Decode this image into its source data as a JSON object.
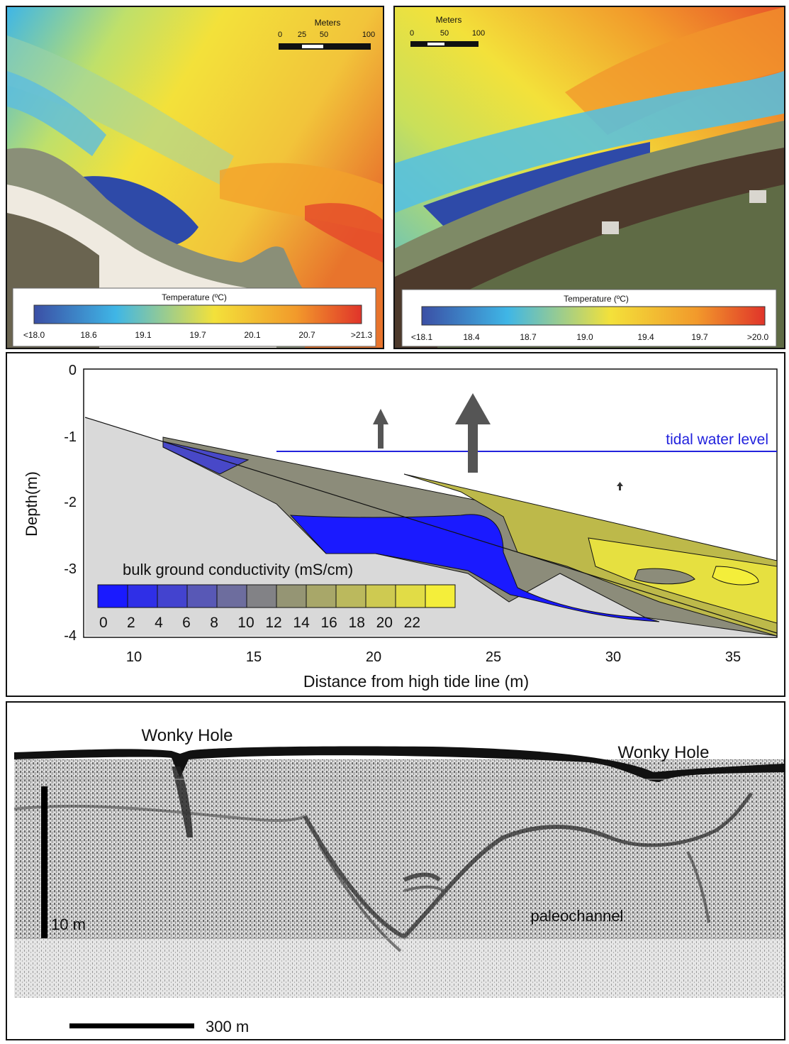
{
  "map_left": {
    "scale": {
      "title": "Meters",
      "ticks": [
        "0",
        "25",
        "50",
        "100"
      ]
    },
    "legend": {
      "title": "Temperature (ºC)",
      "ticks": [
        "<18.0",
        "18.6",
        "19.1",
        "19.7",
        "20.1",
        "20.7",
        ">21.3"
      ]
    }
  },
  "map_right": {
    "scale": {
      "title": "Meters",
      "ticks": [
        "0",
        "50",
        "100"
      ]
    },
    "legend": {
      "title": "Temperature (ºC)",
      "ticks": [
        "<18.1",
        "18.4",
        "18.7",
        "19.0",
        "19.4",
        "19.7",
        ">20.0"
      ]
    }
  },
  "colors": {
    "cold": "#2e4aa8",
    "cool": "#3fb6e6",
    "mild": "#f3e13a",
    "warm": "#f29a2b",
    "hot": "#e0342a",
    "conductivity_low": "#1a1aff",
    "conductivity_mid": "#8c8c7a",
    "conductivity_high": "#f4ee3a",
    "tidal_line": "#2222dd"
  },
  "conductivity_section": {
    "ylabel": "Depth(m)",
    "xlabel": "Distance from high tide line (m)",
    "y_ticks": [
      "0",
      "-1",
      "-2",
      "-3",
      "-4"
    ],
    "x_ticks": [
      "10",
      "15",
      "20",
      "25",
      "30",
      "35"
    ],
    "water_label": "tidal water level",
    "legend_title": "bulk ground conductivity (mS/cm)",
    "legend_ticks": [
      "0",
      "2",
      "4",
      "6",
      "8",
      "10",
      "12",
      "14",
      "16",
      "18",
      "20",
      "22"
    ]
  },
  "seismic": {
    "labels": {
      "hole_left": "Wonky Hole",
      "hole_right": "Wonky Hole",
      "channel": "paleochannel"
    },
    "vertical_scale": "10 m",
    "horizontal_scale": "300 m"
  }
}
